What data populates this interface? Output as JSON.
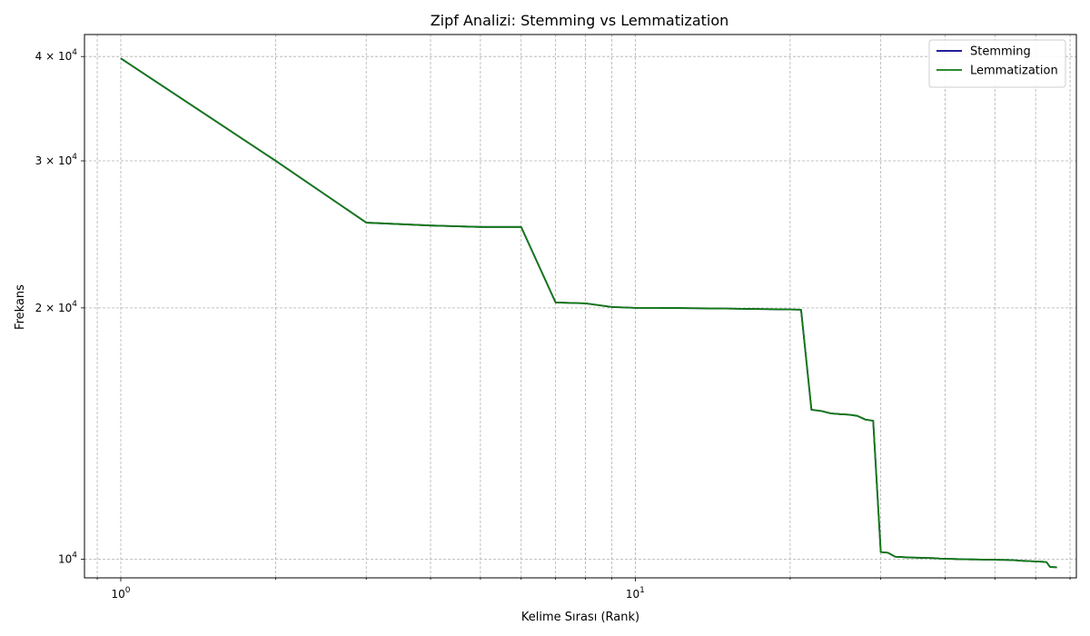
{
  "chart_data": {
    "type": "line",
    "title": "Zipf Analizi: Stemming vs Lemmatization",
    "xlabel": "Kelime Sırası (Rank)",
    "ylabel": "Frekans",
    "xscale": "log",
    "yscale": "log",
    "xlim": [
      0.85,
      72
    ],
    "ylim": [
      9500,
      42500
    ],
    "grid": true,
    "legend_position": "top-right",
    "x_ticks": [
      {
        "value": 1,
        "base": "10",
        "exp": "0",
        "mantissa": ""
      },
      {
        "value": 10,
        "base": "10",
        "exp": "1",
        "mantissa": ""
      }
    ],
    "y_ticks": [
      {
        "value": 10000,
        "mantissa": "",
        "base": "10",
        "exp": "4"
      },
      {
        "value": 20000,
        "mantissa": "2 × ",
        "base": "10",
        "exp": "4"
      },
      {
        "value": 30000,
        "mantissa": "3 × ",
        "base": "10",
        "exp": "4"
      },
      {
        "value": 40000,
        "mantissa": "4 × ",
        "base": "10",
        "exp": "4"
      }
    ],
    "series": [
      {
        "name": "Stemming",
        "color": "#00008b",
        "x": [
          1,
          2,
          3,
          4,
          5,
          6,
          7,
          8,
          9,
          10,
          11,
          12,
          13,
          14,
          15,
          16,
          17,
          18,
          19,
          20,
          21,
          22,
          23,
          24,
          25,
          26,
          27,
          28,
          29,
          30,
          31,
          32,
          33,
          34,
          35,
          36,
          37,
          38,
          39,
          40,
          41,
          42,
          43,
          44,
          45,
          46,
          47,
          48,
          49,
          50,
          51,
          52,
          53,
          54,
          55,
          56,
          57,
          58,
          59,
          60,
          61,
          62,
          63,
          64,
          65,
          66
        ],
        "y": [
          39800,
          30000,
          25300,
          25100,
          25000,
          25000,
          20300,
          20250,
          20050,
          20000,
          20000,
          19990,
          19980,
          19970,
          19960,
          19950,
          19940,
          19930,
          19920,
          19910,
          19900,
          15100,
          15050,
          14950,
          14920,
          14900,
          14850,
          14700,
          14650,
          10200,
          10180,
          10070,
          10060,
          10050,
          10045,
          10040,
          10035,
          10030,
          10020,
          10015,
          10010,
          10005,
          10000,
          9998,
          9996,
          9994,
          9992,
          9990,
          9988,
          9986,
          9984,
          9982,
          9980,
          9975,
          9970,
          9960,
          9955,
          9950,
          9945,
          9940,
          9935,
          9930,
          9920,
          9790,
          9785,
          9780
        ]
      },
      {
        "name": "Lemmatization",
        "color": "#117a11",
        "x": [
          1,
          2,
          3,
          4,
          5,
          6,
          7,
          8,
          9,
          10,
          11,
          12,
          13,
          14,
          15,
          16,
          17,
          18,
          19,
          20,
          21,
          22,
          23,
          24,
          25,
          26,
          27,
          28,
          29,
          30,
          31,
          32,
          33,
          34,
          35,
          36,
          37,
          38,
          39,
          40,
          41,
          42,
          43,
          44,
          45,
          46,
          47,
          48,
          49,
          50,
          51,
          52,
          53,
          54,
          55,
          56,
          57,
          58,
          59,
          60,
          61,
          62,
          63,
          64,
          65,
          66
        ],
        "y": [
          39800,
          30000,
          25300,
          25100,
          25000,
          25000,
          20300,
          20250,
          20050,
          20000,
          20000,
          19990,
          19980,
          19970,
          19960,
          19950,
          19940,
          19930,
          19920,
          19910,
          19900,
          15100,
          15050,
          14950,
          14920,
          14900,
          14850,
          14700,
          14650,
          10200,
          10180,
          10070,
          10060,
          10050,
          10045,
          10040,
          10035,
          10030,
          10020,
          10015,
          10010,
          10005,
          10000,
          9998,
          9996,
          9994,
          9992,
          9990,
          9988,
          9986,
          9984,
          9982,
          9980,
          9975,
          9970,
          9960,
          9955,
          9950,
          9945,
          9940,
          9935,
          9930,
          9920,
          9790,
          9785,
          9780
        ]
      }
    ]
  }
}
